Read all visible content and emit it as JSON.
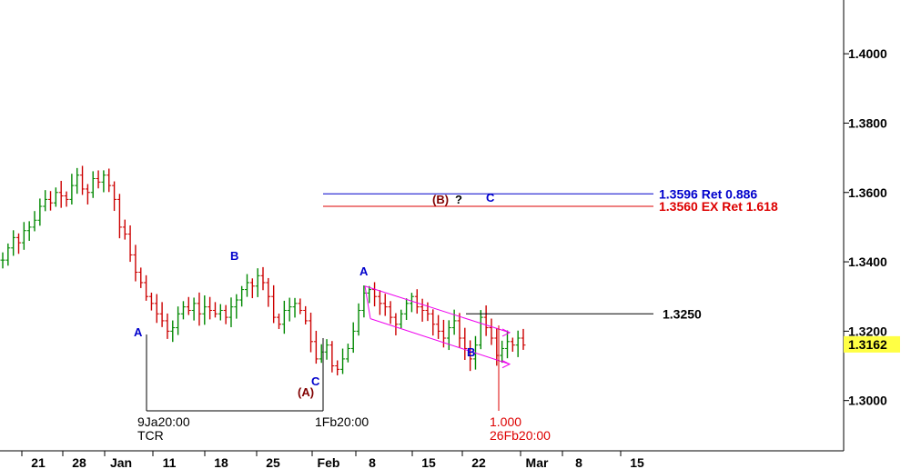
{
  "chart_data": {
    "type": "line",
    "symbol_note": "",
    "y_axis": {
      "ticks": [
        "1.4000",
        "1.3800",
        "1.3600",
        "1.3400",
        "1.3200",
        "1.3000"
      ],
      "tick_values": [
        1.4,
        1.38,
        1.36,
        1.34,
        1.32,
        1.3
      ],
      "range": [
        1.2855,
        1.4155
      ],
      "current_price": "1.3162",
      "current_price_value": 1.3162,
      "current_price_color": "#ffff44"
    },
    "x_axis": {
      "ticks": [
        "21",
        "28",
        "Jan",
        "11",
        "18",
        "25",
        "Feb",
        "8",
        "15",
        "22",
        "Mar",
        "8",
        "15"
      ]
    },
    "series": [
      {
        "values": [
          1.3405,
          1.344,
          1.347,
          1.3455,
          1.349,
          1.35,
          1.352,
          1.356,
          1.358,
          1.357,
          1.36,
          1.359,
          1.358,
          1.362,
          1.365,
          1.361,
          1.36,
          1.364,
          1.363,
          1.365,
          1.362,
          1.358,
          1.35,
          1.348,
          1.342,
          1.337,
          1.334,
          1.33,
          1.328,
          1.325,
          1.323,
          1.32,
          1.321,
          1.325,
          1.327,
          1.326,
          1.328,
          1.325,
          1.327,
          1.326,
          1.325,
          1.326,
          1.324,
          1.327,
          1.329,
          1.332,
          1.334,
          1.333,
          1.336,
          1.334,
          1.33,
          1.324,
          1.322,
          1.326,
          1.327,
          1.328,
          1.326,
          1.323,
          1.317,
          1.312,
          1.314,
          1.316,
          1.31,
          1.309,
          1.312,
          1.315,
          1.32,
          1.326,
          1.331,
          1.332,
          1.33,
          1.328,
          1.327,
          1.324,
          1.322,
          1.325,
          1.328,
          1.33,
          1.327,
          1.326,
          1.325,
          1.322,
          1.32,
          1.318,
          1.321,
          1.323,
          1.318,
          1.315,
          1.312,
          1.316,
          1.324,
          1.321,
          1.318,
          1.313,
          1.315,
          1.317,
          1.316,
          1.318,
          1.316
        ],
        "color": "#000000"
      }
    ],
    "horizontal_lines": [
      {
        "label": "1.3596 Ret 0.886",
        "value": 1.3596,
        "color": "#0000cc"
      },
      {
        "label": "1.3560 EX Ret 1.618",
        "value": 1.356,
        "color": "#dd0000"
      },
      {
        "label": "1.3250",
        "value": 1.325,
        "color": "#000000"
      }
    ],
    "wave_labels": [
      {
        "text": "A",
        "color": "#0000cc"
      },
      {
        "text": "B",
        "color": "#0000cc"
      },
      {
        "text": "C",
        "color": "#0000cc"
      },
      {
        "text": "(A)",
        "color": "#800000"
      },
      {
        "text": "A",
        "color": "#0000cc"
      },
      {
        "text": "B",
        "color": "#0000cc"
      },
      {
        "text": "(B)",
        "color": "#800000"
      },
      {
        "text": "?",
        "color": "#000000"
      },
      {
        "text": "C",
        "color": "#0000cc"
      }
    ],
    "vertical_markers": [
      {
        "label": "9Ja20:00",
        "sublabel": "TCR",
        "color": "#000000"
      },
      {
        "label": "1Fb20:00",
        "sublabel": "",
        "color": "#000000"
      },
      {
        "label": "1.000",
        "sublabel": "26Fb20:00",
        "color": "#dd0000"
      }
    ],
    "channel_color": "#ee00ee",
    "up_color": "#008800",
    "down_color": "#cc0000"
  }
}
